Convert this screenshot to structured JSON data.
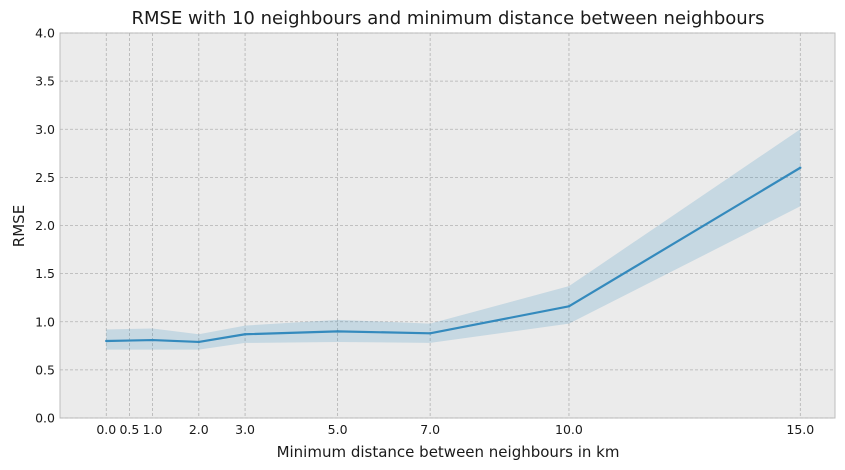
{
  "chart_data": {
    "type": "line",
    "title": "RMSE with 10 neighbours and minimum distance between neighbours",
    "xlabel": "Minimum distance between neighbours in km",
    "ylabel": "RMSE",
    "xlim": [
      -1.0,
      15.75
    ],
    "ylim": [
      0.0,
      4.0
    ],
    "x_ticks": [
      0.0,
      0.5,
      1.0,
      2.0,
      3.0,
      5.0,
      7.0,
      10.0,
      15.0
    ],
    "x_tick_labels": [
      "0.0",
      "0.5",
      "1.0",
      "2.0",
      "3.0",
      "5.0",
      "7.0",
      "10.0",
      "15.0"
    ],
    "y_ticks": [
      0.0,
      0.5,
      1.0,
      1.5,
      2.0,
      2.5,
      3.0,
      3.5,
      4.0
    ],
    "y_tick_labels": [
      "0.0",
      "0.5",
      "1.0",
      "1.5",
      "2.0",
      "2.5",
      "3.0",
      "3.5",
      "4.0"
    ],
    "grid": true,
    "series": [
      {
        "x": [
          0.0,
          1.0,
          2.0,
          3.0,
          5.0,
          7.0,
          10.0,
          15.0
        ],
        "values": [
          0.8,
          0.81,
          0.79,
          0.87,
          0.9,
          0.88,
          1.16,
          2.6
        ],
        "lower": [
          0.71,
          0.71,
          0.71,
          0.78,
          0.79,
          0.78,
          0.98,
          2.2
        ],
        "upper": [
          0.92,
          0.93,
          0.87,
          0.96,
          1.02,
          0.98,
          1.37,
          3.0
        ],
        "color": "#348abd",
        "band_color": "#348abd"
      }
    ]
  }
}
